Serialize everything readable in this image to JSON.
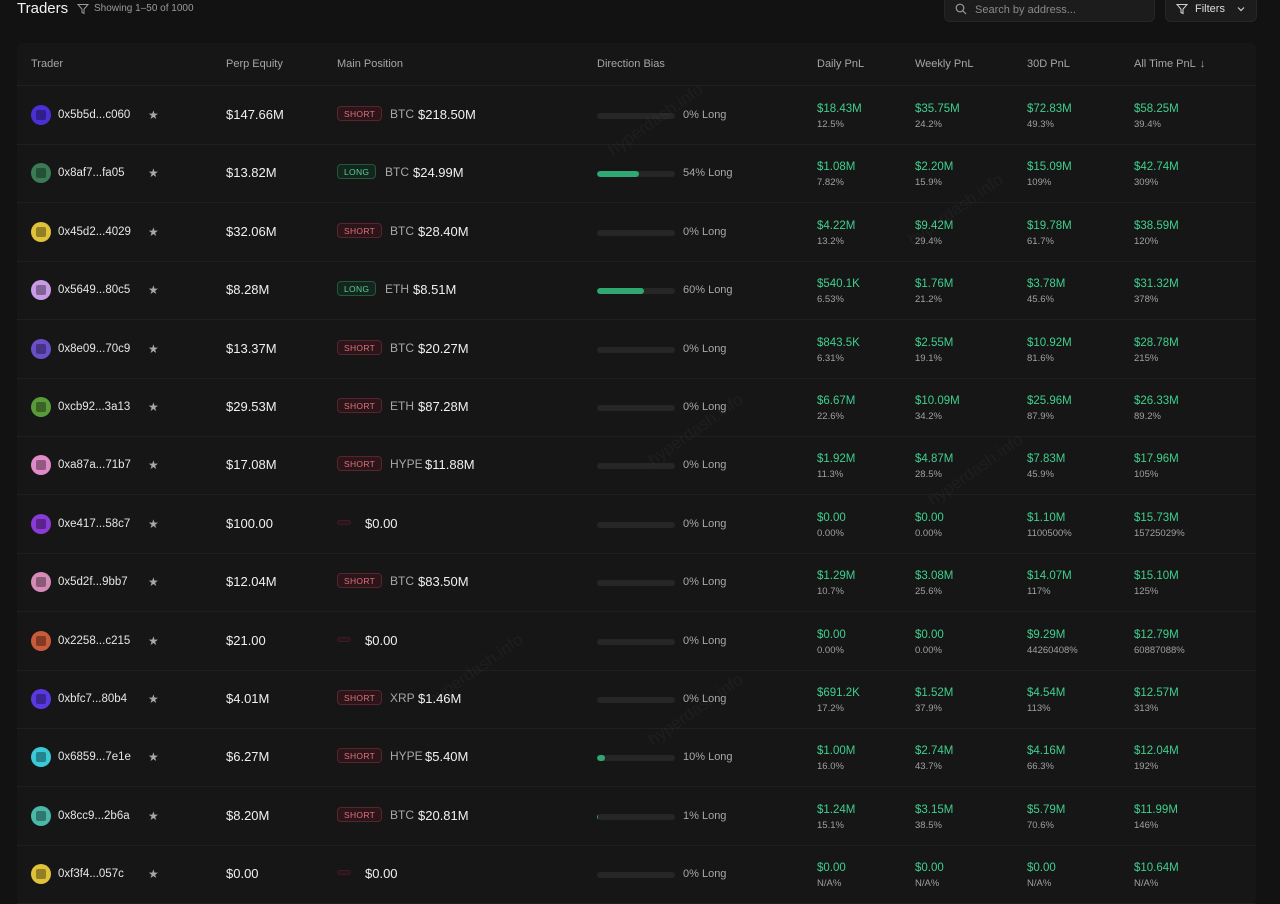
{
  "header": {
    "title": "Traders",
    "showing": "Showing 1–50 of 1000",
    "search_placeholder": "Search by address...",
    "filters_label": "Filters"
  },
  "columns": {
    "trader": "Trader",
    "equity": "Perp Equity",
    "position": "Main Position",
    "bias": "Direction Bias",
    "daily": "Daily PnL",
    "weekly": "Weekly PnL",
    "monthly": "30D PnL",
    "alltime": "All Time PnL",
    "sort_indicator": "↓"
  },
  "rows": [
    {
      "addr": "0x5b5d...c060",
      "avatar_color": "#4b2fd6",
      "equity": "$147.66M",
      "side": "SHORT",
      "asset": "BTC",
      "size": "$218.50M",
      "bias_pct": 0,
      "bias_label": "0% Long",
      "daily": "$18.43M",
      "daily_pct": "12.5%",
      "weekly": "$35.75M",
      "weekly_pct": "24.2%",
      "monthly": "$72.83M",
      "monthly_pct": "49.3%",
      "alltime": "$58.25M",
      "alltime_pct": "39.4%"
    },
    {
      "addr": "0x8af7...fa05",
      "avatar_color": "#3a7a55",
      "equity": "$13.82M",
      "side": "LONG",
      "asset": "BTC",
      "size": "$24.99M",
      "bias_pct": 54,
      "bias_label": "54% Long",
      "daily": "$1.08M",
      "daily_pct": "7.82%",
      "weekly": "$2.20M",
      "weekly_pct": "15.9%",
      "monthly": "$15.09M",
      "monthly_pct": "109%",
      "alltime": "$42.74M",
      "alltime_pct": "309%"
    },
    {
      "addr": "0x45d2...4029",
      "avatar_color": "#e0c23a",
      "equity": "$32.06M",
      "side": "SHORT",
      "asset": "BTC",
      "size": "$28.40M",
      "bias_pct": 0,
      "bias_label": "0% Long",
      "daily": "$4.22M",
      "daily_pct": "13.2%",
      "weekly": "$9.42M",
      "weekly_pct": "29.4%",
      "monthly": "$19.78M",
      "monthly_pct": "61.7%",
      "alltime": "$38.59M",
      "alltime_pct": "120%"
    },
    {
      "addr": "0x5649...80c5",
      "avatar_color": "#c99ae8",
      "equity": "$8.28M",
      "side": "LONG",
      "asset": "ETH",
      "size": "$8.51M",
      "bias_pct": 60,
      "bias_label": "60% Long",
      "daily": "$540.1K",
      "daily_pct": "6.53%",
      "weekly": "$1.76M",
      "weekly_pct": "21.2%",
      "monthly": "$3.78M",
      "monthly_pct": "45.6%",
      "alltime": "$31.32M",
      "alltime_pct": "378%"
    },
    {
      "addr": "0x8e09...70c9",
      "avatar_color": "#6a4fc9",
      "equity": "$13.37M",
      "side": "SHORT",
      "asset": "BTC",
      "size": "$20.27M",
      "bias_pct": 0,
      "bias_label": "0% Long",
      "daily": "$843.5K",
      "daily_pct": "6.31%",
      "weekly": "$2.55M",
      "weekly_pct": "19.1%",
      "monthly": "$10.92M",
      "monthly_pct": "81.6%",
      "alltime": "$28.78M",
      "alltime_pct": "215%"
    },
    {
      "addr": "0xcb92...3a13",
      "avatar_color": "#5a9a3a",
      "equity": "$29.53M",
      "side": "SHORT",
      "asset": "ETH",
      "size": "$87.28M",
      "bias_pct": 0,
      "bias_label": "0% Long",
      "daily": "$6.67M",
      "daily_pct": "22.6%",
      "weekly": "$10.09M",
      "weekly_pct": "34.2%",
      "monthly": "$25.96M",
      "monthly_pct": "87.9%",
      "alltime": "$26.33M",
      "alltime_pct": "89.2%"
    },
    {
      "addr": "0xa87a...71b7",
      "avatar_color": "#e08ac9",
      "equity": "$17.08M",
      "side": "SHORT",
      "asset": "HYPE",
      "size": "$11.88M",
      "bias_pct": 0,
      "bias_label": "0% Long",
      "daily": "$1.92M",
      "daily_pct": "11.3%",
      "weekly": "$4.87M",
      "weekly_pct": "28.5%",
      "monthly": "$7.83M",
      "monthly_pct": "45.9%",
      "alltime": "$17.96M",
      "alltime_pct": "105%"
    },
    {
      "addr": "0xe417...58c7",
      "avatar_color": "#8a3ad6",
      "equity": "$100.00",
      "side": "",
      "asset": "",
      "size": "$0.00",
      "bias_pct": 0,
      "bias_label": "0% Long",
      "daily": "$0.00",
      "daily_pct": "0.00%",
      "weekly": "$0.00",
      "weekly_pct": "0.00%",
      "monthly": "$1.10M",
      "monthly_pct": "1100500%",
      "alltime": "$15.73M",
      "alltime_pct": "15725029%"
    },
    {
      "addr": "0x5d2f...9bb7",
      "avatar_color": "#d68ab8",
      "equity": "$12.04M",
      "side": "SHORT",
      "asset": "BTC",
      "size": "$83.50M",
      "bias_pct": 0,
      "bias_label": "0% Long",
      "daily": "$1.29M",
      "daily_pct": "10.7%",
      "weekly": "$3.08M",
      "weekly_pct": "25.6%",
      "monthly": "$14.07M",
      "monthly_pct": "117%",
      "alltime": "$15.10M",
      "alltime_pct": "125%"
    },
    {
      "addr": "0x2258...c215",
      "avatar_color": "#c95a3a",
      "equity": "$21.00",
      "side": "",
      "asset": "",
      "size": "$0.00",
      "bias_pct": 0,
      "bias_label": "0% Long",
      "daily": "$0.00",
      "daily_pct": "0.00%",
      "weekly": "$0.00",
      "weekly_pct": "0.00%",
      "monthly": "$9.29M",
      "monthly_pct": "44260408%",
      "alltime": "$12.79M",
      "alltime_pct": "60887088%"
    },
    {
      "addr": "0xbfc7...80b4",
      "avatar_color": "#5a3ae0",
      "equity": "$4.01M",
      "side": "SHORT",
      "asset": "XRP",
      "size": "$1.46M",
      "bias_pct": 0,
      "bias_label": "0% Long",
      "daily": "$691.2K",
      "daily_pct": "17.2%",
      "weekly": "$1.52M",
      "weekly_pct": "37.9%",
      "monthly": "$4.54M",
      "monthly_pct": "113%",
      "alltime": "$12.57M",
      "alltime_pct": "313%"
    },
    {
      "addr": "0x6859...7e1e",
      "avatar_color": "#3ac9d6",
      "equity": "$6.27M",
      "side": "SHORT",
      "asset": "HYPE",
      "size": "$5.40M",
      "bias_pct": 10,
      "bias_label": "10% Long",
      "daily": "$1.00M",
      "daily_pct": "16.0%",
      "weekly": "$2.74M",
      "weekly_pct": "43.7%",
      "monthly": "$4.16M",
      "monthly_pct": "66.3%",
      "alltime": "$12.04M",
      "alltime_pct": "192%"
    },
    {
      "addr": "0x8cc9...2b6a",
      "avatar_color": "#4ab8a8",
      "equity": "$8.20M",
      "side": "SHORT",
      "asset": "BTC",
      "size": "$20.81M",
      "bias_pct": 1,
      "bias_label": "1% Long",
      "daily": "$1.24M",
      "daily_pct": "15.1%",
      "weekly": "$3.15M",
      "weekly_pct": "38.5%",
      "monthly": "$5.79M",
      "monthly_pct": "70.6%",
      "alltime": "$11.99M",
      "alltime_pct": "146%"
    },
    {
      "addr": "0xf3f4...057c",
      "avatar_color": "#e0c23a",
      "equity": "$0.00",
      "side": "",
      "asset": "",
      "size": "$0.00",
      "bias_pct": 0,
      "bias_label": "0% Long",
      "daily": "$0.00",
      "daily_pct": "N/A%",
      "weekly": "$0.00",
      "weekly_pct": "N/A%",
      "monthly": "$0.00",
      "monthly_pct": "N/A%",
      "alltime": "$10.64M",
      "alltime_pct": "N/A%"
    }
  ],
  "colors": {
    "background": "#121212",
    "positive": "#3fcf8e",
    "short": "#e0707e",
    "long": "#5bcf95",
    "bias_fill": "#2fa873"
  }
}
